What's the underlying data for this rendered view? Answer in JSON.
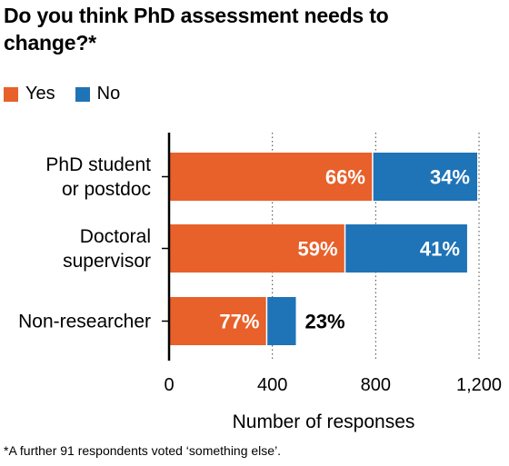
{
  "title": "Do you think PhD assessment needs to change?*",
  "legend": [
    {
      "label": "Yes",
      "color": "#e8602a"
    },
    {
      "label": "No",
      "color": "#1f73b7"
    }
  ],
  "footnote": "*A further 91 respondents voted ‘something else’.",
  "chart_data": {
    "type": "bar",
    "orientation": "horizontal",
    "stacked": true,
    "categories": [
      [
        "PhD student",
        "or postdoc"
      ],
      [
        "Doctoral",
        "supervisor"
      ],
      [
        "Non-researcher"
      ]
    ],
    "series": [
      {
        "name": "Yes",
        "color": "#e8602a",
        "values": [
          788,
          681,
          378
        ],
        "labels": [
          "66%",
          "59%",
          "77%"
        ]
      },
      {
        "name": "No",
        "color": "#1f73b7",
        "values": [
          405,
          473,
          113
        ],
        "labels": [
          "34%",
          "41%",
          "23%"
        ]
      }
    ],
    "xlabel": "Number of responses",
    "xlim": [
      0,
      1200
    ],
    "xticks": [
      0,
      400,
      800,
      1200
    ],
    "xtick_labels": [
      "0",
      "400",
      "800",
      "1,200"
    ],
    "grid": "dotted vertical lines"
  }
}
